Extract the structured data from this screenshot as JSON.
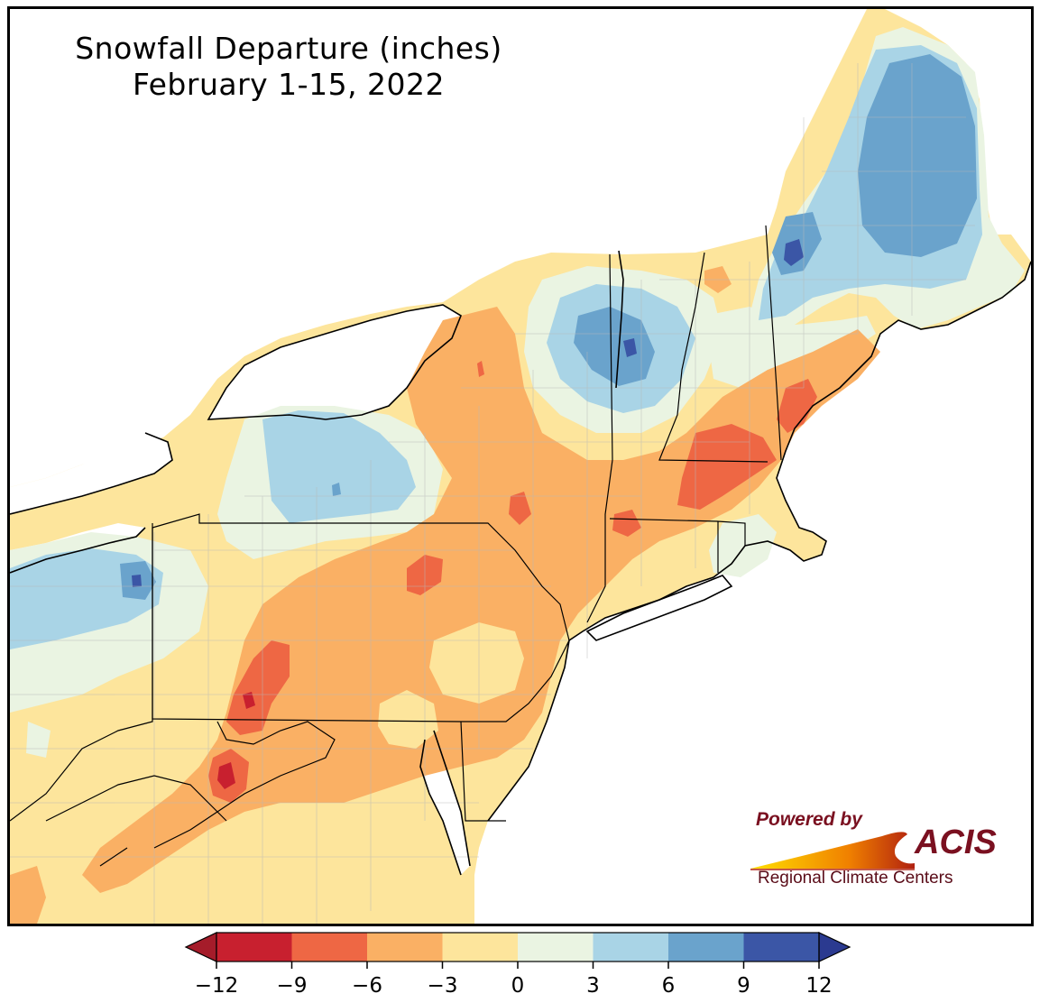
{
  "title": {
    "line1": "Snowfall Departure (inches)",
    "line2": "February 1-15, 2022"
  },
  "legend": {
    "ticks": [
      "−12",
      "−9",
      "−6",
      "−3",
      "0",
      "3",
      "6",
      "9",
      "12"
    ],
    "bins": [
      {
        "range": [
          -12,
          -9
        ],
        "color": "#c8202f"
      },
      {
        "range": [
          -9,
          -6
        ],
        "color": "#ee6744"
      },
      {
        "range": [
          -6,
          -3
        ],
        "color": "#fab064"
      },
      {
        "range": [
          -3,
          0
        ],
        "color": "#fde59c"
      },
      {
        "range": [
          0,
          3
        ],
        "color": "#eaf4e2"
      },
      {
        "range": [
          3,
          6
        ],
        "color": "#a9d4e6"
      },
      {
        "range": [
          6,
          9
        ],
        "color": "#6aa3cc"
      },
      {
        "range": [
          9,
          12
        ],
        "color": "#3b56a6"
      }
    ],
    "extend_low_color": "#a51c2a",
    "extend_high_color": "#2b3a90"
  },
  "logo": {
    "powered": "Powered by",
    "name": "ACIS",
    "subtitle": "Regional Climate Centers"
  },
  "water_color": "#ffffff",
  "land_default_color": "#fde59c"
}
